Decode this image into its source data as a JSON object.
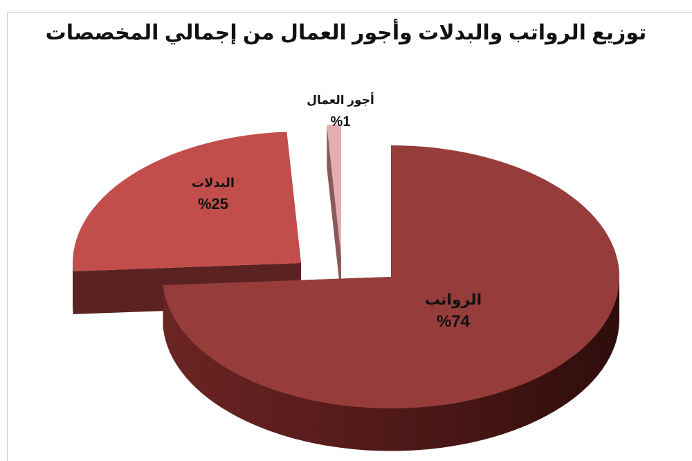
{
  "chart_data": {
    "type": "pie",
    "title": "توزيع الرواتب والبدلات وأجور العمال من إجمالي المخصصات",
    "categories": [
      "الرواتب",
      "البدلات",
      "أجور العمال"
    ],
    "values": [
      74,
      25,
      1
    ],
    "value_labels": [
      "%74",
      "%25",
      "%1"
    ],
    "colors": [
      "#963d3b",
      "#c24e4b",
      "#e3aeb0"
    ],
    "side_colors": [
      "#4f1c1b",
      "#5a2220",
      "#8a5a5a"
    ],
    "legend": "none",
    "style": "3d-exploded"
  }
}
